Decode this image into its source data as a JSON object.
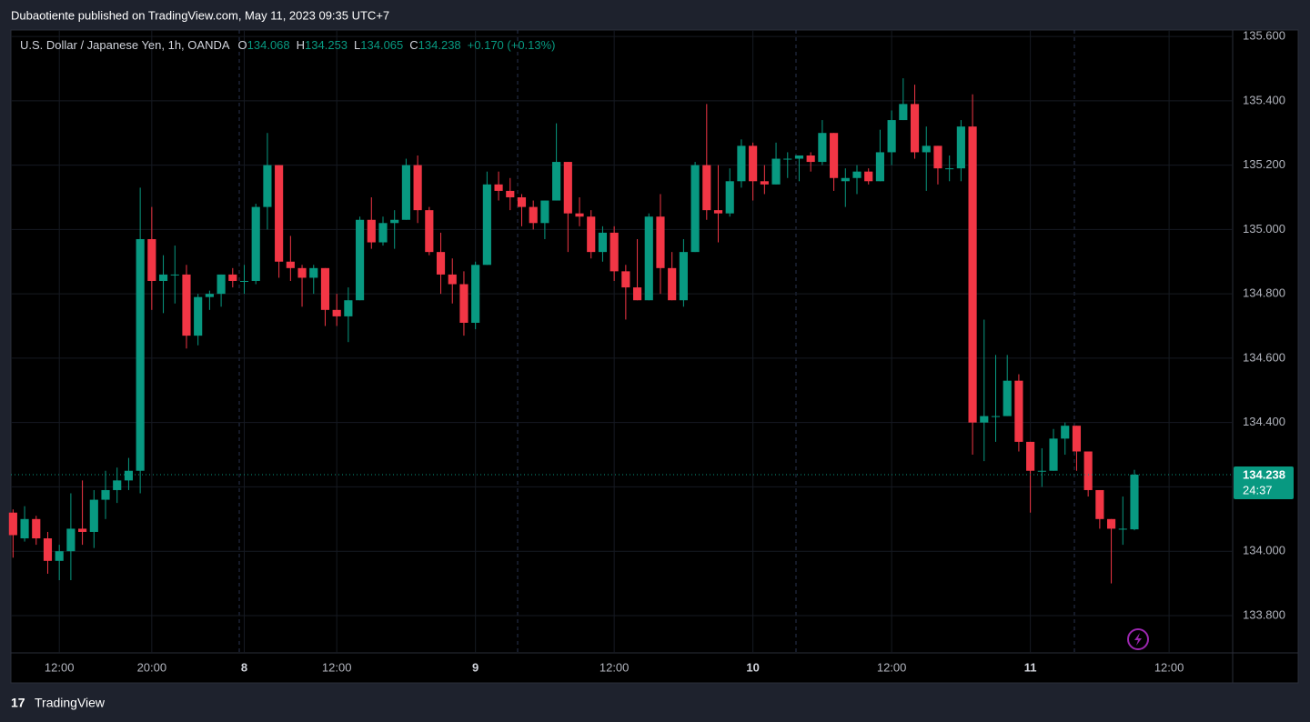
{
  "page": {
    "publish_note": "Dubaotiente published on TradingView.com, May 11, 2023 09:35 UTC+7",
    "brand": "TradingView"
  },
  "chart_data": {
    "type": "candlestick",
    "header": {
      "symbol": "U.S. Dollar / Japanese Yen, 1h, OANDA",
      "items": [
        {
          "label": "O",
          "value": "134.068"
        },
        {
          "label": "H",
          "value": "134.253"
        },
        {
          "label": "L",
          "value": "134.065"
        },
        {
          "label": "C",
          "value": "134.238"
        }
      ],
      "change": "+0.170 (+0.13%)"
    },
    "categories": [
      null,
      null,
      null,
      null,
      "12:00",
      null,
      null,
      null,
      null,
      null,
      null,
      null,
      "20:00",
      null,
      null,
      null,
      null,
      null,
      null,
      null,
      "8",
      null,
      null,
      null,
      null,
      null,
      null,
      null,
      "12:00",
      null,
      null,
      null,
      null,
      null,
      null,
      null,
      null,
      null,
      null,
      null,
      "9",
      null,
      null,
      null,
      null,
      null,
      null,
      null,
      null,
      null,
      null,
      null,
      "12:00",
      null,
      null,
      null,
      null,
      null,
      null,
      null,
      null,
      null,
      null,
      null,
      "10",
      null,
      null,
      null,
      null,
      null,
      null,
      null,
      null,
      null,
      null,
      null,
      "12:00",
      null,
      null,
      null,
      null,
      null,
      null,
      null,
      null,
      null,
      null,
      null,
      "11",
      null,
      null,
      null,
      null,
      null,
      null,
      null,
      null,
      null,
      null,
      null,
      "12:00",
      null,
      null,
      null,
      null,
      null
    ],
    "open": [
      134.12,
      134.04,
      134.1,
      134.04,
      133.97,
      134.0,
      134.07,
      134.06,
      134.16,
      134.19,
      134.22,
      134.25,
      134.97,
      134.84,
      134.86,
      134.86,
      134.67,
      134.79,
      134.8,
      134.86,
      134.84,
      134.84,
      135.07,
      135.2,
      134.9,
      134.88,
      134.85,
      134.88,
      134.75,
      134.73,
      134.78,
      135.03,
      134.96,
      135.02,
      135.03,
      135.2,
      135.06,
      134.93,
      134.86,
      134.83,
      134.71,
      134.89,
      135.14,
      135.12,
      135.1,
      135.07,
      135.02,
      135.09,
      135.21,
      135.05,
      135.04,
      134.93,
      134.99,
      134.87,
      134.82,
      134.78,
      135.04,
      134.88,
      134.78,
      134.93,
      135.2,
      135.06,
      135.05,
      135.15,
      135.26,
      135.15,
      135.14,
      135.22,
      135.22,
      135.23,
      135.21,
      135.3,
      135.15,
      135.16,
      135.18,
      135.15,
      135.24,
      135.34,
      135.39,
      135.24,
      135.26,
      135.19,
      135.19,
      135.32,
      134.4,
      134.42,
      134.42,
      134.53,
      134.34,
      134.25,
      134.25,
      134.35,
      134.39,
      134.31,
      134.19,
      134.1,
      134.07,
      134.068,
      null,
      null,
      null,
      null,
      null,
      null,
      null,
      null
    ],
    "high": [
      134.13,
      134.14,
      134.11,
      134.06,
      134.02,
      134.18,
      134.22,
      134.19,
      134.25,
      134.26,
      134.29,
      135.13,
      135.07,
      134.92,
      134.95,
      134.89,
      134.8,
      134.81,
      134.86,
      134.88,
      134.89,
      135.08,
      135.3,
      135.2,
      134.98,
      134.89,
      134.89,
      134.88,
      134.8,
      134.82,
      135.04,
      135.1,
      135.04,
      135.06,
      135.22,
      135.23,
      135.07,
      134.99,
      134.91,
      134.87,
      134.9,
      135.18,
      135.18,
      135.16,
      135.11,
      135.09,
      135.09,
      135.33,
      135.21,
      135.1,
      135.06,
      135.01,
      135.01,
      134.89,
      134.97,
      135.05,
      135.11,
      134.93,
      134.97,
      135.21,
      135.39,
      135.2,
      135.19,
      135.28,
      135.27,
      135.2,
      135.27,
      135.24,
      135.23,
      135.24,
      135.34,
      135.3,
      135.19,
      135.2,
      135.19,
      135.31,
      135.37,
      135.47,
      135.45,
      135.32,
      135.26,
      135.23,
      135.34,
      135.42,
      134.72,
      134.61,
      134.61,
      134.55,
      134.34,
      134.32,
      134.38,
      134.4,
      134.39,
      134.31,
      134.19,
      134.1,
      134.17,
      134.253,
      null,
      null,
      null,
      null,
      null,
      null,
      null,
      null
    ],
    "low": [
      133.98,
      134.03,
      134.02,
      133.93,
      133.91,
      133.91,
      134.02,
      134.01,
      134.1,
      134.15,
      134.19,
      134.18,
      134.75,
      134.74,
      134.77,
      134.63,
      134.64,
      134.75,
      134.76,
      134.82,
      134.8,
      134.83,
      135.0,
      134.85,
      134.84,
      134.76,
      134.8,
      134.7,
      134.7,
      134.65,
      134.78,
      134.94,
      134.95,
      134.94,
      135.03,
      135.02,
      134.92,
      134.8,
      134.77,
      134.67,
      134.69,
      134.89,
      135.09,
      135.06,
      135.01,
      135.0,
      134.97,
      135.09,
      134.93,
      135.01,
      134.91,
      134.9,
      134.84,
      134.72,
      134.78,
      134.78,
      134.8,
      134.78,
      134.76,
      134.93,
      135.03,
      134.96,
      135.04,
      135.13,
      135.09,
      135.11,
      135.14,
      135.16,
      135.15,
      135.18,
      135.2,
      135.12,
      135.07,
      135.11,
      135.14,
      135.15,
      135.2,
      135.34,
      135.22,
      135.12,
      135.14,
      135.15,
      135.15,
      134.3,
      134.28,
      134.34,
      134.42,
      134.31,
      134.12,
      134.2,
      134.25,
      134.3,
      134.25,
      134.17,
      134.07,
      133.9,
      134.02,
      134.065,
      null,
      null,
      null,
      null,
      null,
      null,
      null,
      null
    ],
    "close": [
      134.05,
      134.1,
      134.04,
      133.97,
      134.0,
      134.07,
      134.06,
      134.16,
      134.19,
      134.22,
      134.25,
      134.97,
      134.84,
      134.86,
      134.86,
      134.67,
      134.79,
      134.8,
      134.86,
      134.84,
      134.84,
      135.07,
      135.2,
      134.9,
      134.88,
      134.85,
      134.88,
      134.75,
      134.73,
      134.78,
      135.03,
      134.96,
      135.02,
      135.03,
      135.2,
      135.06,
      134.93,
      134.86,
      134.83,
      134.71,
      134.89,
      135.14,
      135.12,
      135.1,
      135.07,
      135.02,
      135.09,
      135.21,
      135.05,
      135.04,
      134.93,
      134.99,
      134.87,
      134.82,
      134.78,
      135.04,
      134.88,
      134.78,
      134.93,
      135.2,
      135.06,
      135.05,
      135.15,
      135.26,
      135.15,
      135.14,
      135.22,
      135.22,
      135.23,
      135.21,
      135.3,
      135.16,
      135.16,
      135.18,
      135.15,
      135.24,
      135.34,
      135.39,
      135.24,
      135.26,
      135.19,
      135.19,
      135.32,
      134.4,
      134.42,
      134.42,
      134.53,
      134.34,
      134.25,
      134.25,
      134.35,
      134.39,
      134.31,
      134.19,
      134.1,
      134.07,
      134.07,
      134.238,
      null,
      null,
      null,
      null,
      null,
      null,
      null,
      null
    ],
    "up_color": "#089981",
    "down_color": "#f23645",
    "ylim": [
      133.684,
      135.62
    ],
    "yticks": [
      {
        "value": 133.8,
        "label": "133.800"
      },
      {
        "value": 134,
        "label": "134.000"
      },
      {
        "value": 134.2,
        "label": "134.200"
      },
      {
        "value": 134.4,
        "label": "134.400"
      },
      {
        "value": 134.6,
        "label": "134.600"
      },
      {
        "value": 134.8,
        "label": "134.800"
      },
      {
        "value": 135,
        "label": "135.000"
      },
      {
        "value": 135.2,
        "label": "135.200"
      },
      {
        "value": 135.4,
        "label": "135.400"
      },
      {
        "value": 135.6,
        "label": "135.600"
      }
    ],
    "grid": true,
    "last_price": 134.238,
    "countdown": "24:37"
  }
}
